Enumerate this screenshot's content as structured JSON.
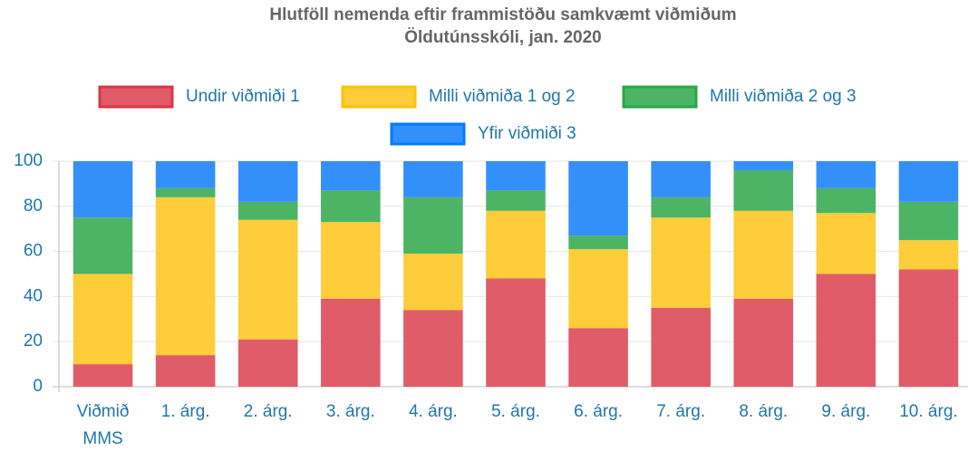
{
  "chart_data": {
    "type": "stacked_bar",
    "title": [
      "Hlutföll nemenda eftir frammistöðu samkvæmt viðmiðum",
      "Öldutúnsskóli, jan. 2020"
    ],
    "categories": [
      [
        "Viðmið",
        "MMS"
      ],
      "1. árg.",
      "2. árg.",
      "3. árg.",
      "4. árg.",
      "5. árg.",
      "6. árg.",
      "7. árg.",
      "8. árg.",
      "9. árg.",
      "10. árg."
    ],
    "series": [
      {
        "name": "Undir viðmiði 1",
        "color": "#e05c69",
        "border": "#dc3545",
        "values": [
          10,
          14,
          21,
          39,
          34,
          48,
          26,
          35,
          39,
          50,
          52
        ]
      },
      {
        "name": "Milli viðmiða 1 og 2",
        "color": "#ffcc3a",
        "border": "#ffc107",
        "values": [
          40,
          70,
          53,
          34,
          25,
          30,
          35,
          40,
          39,
          27,
          13
        ]
      },
      {
        "name": "Milli viðmiða 2 og 3",
        "color": "#4db465",
        "border": "#28a745",
        "values": [
          25,
          4,
          8,
          14,
          25,
          9,
          6,
          9,
          18,
          11,
          17
        ]
      },
      {
        "name": "Yfir viðmiði 3",
        "color": "#3390fb",
        "border": "#007bff",
        "values": [
          25,
          12,
          18,
          13,
          16,
          13,
          33,
          16,
          4,
          12,
          18
        ]
      }
    ],
    "ylim": [
      0,
      100
    ],
    "yticks": [
      0,
      20,
      40,
      60,
      80,
      100
    ],
    "grid": true
  }
}
